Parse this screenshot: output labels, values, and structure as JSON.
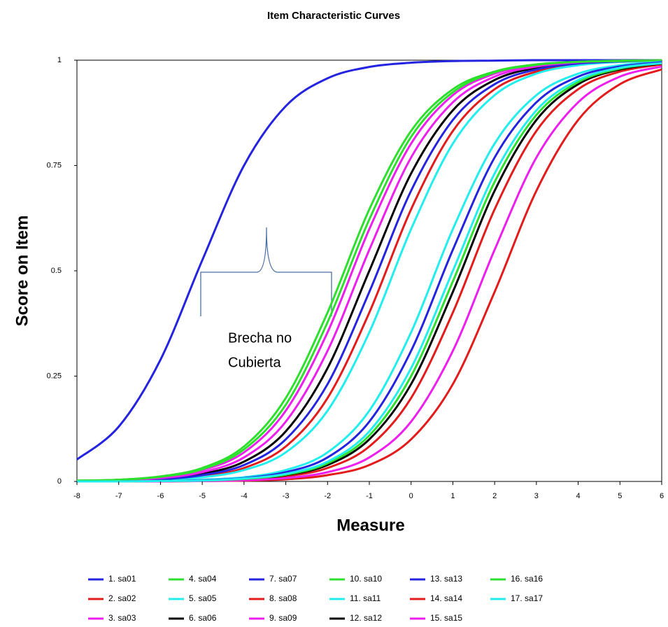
{
  "chart_data": {
    "type": "line",
    "title": "Item Characteristic Curves",
    "x_label": "Measure",
    "y_label": "Score on Item",
    "x": [
      -8,
      -7,
      -6,
      -5,
      -4,
      -3,
      -2,
      -1,
      0,
      1,
      2,
      3,
      4,
      5,
      6
    ],
    "xlim": [
      -8,
      6
    ],
    "xticks": [
      -8,
      -7,
      -6,
      -5,
      -4,
      -3,
      -2,
      -1,
      0,
      1,
      2,
      3,
      4,
      5,
      6
    ],
    "ylim": [
      0,
      1
    ],
    "yticks": [
      0,
      0.25,
      0.5,
      0.75,
      1
    ],
    "grid": false,
    "legend": "bottom",
    "annotation_lines": [
      "Brecha no",
      "Cubierta"
    ],
    "series": [
      {
        "name": "1. sa01",
        "color": "#2323e0",
        "values": [
          0.052,
          0.13,
          0.289,
          0.525,
          0.75,
          0.891,
          0.957,
          0.984,
          0.994,
          0.998,
          0.999,
          1,
          1,
          1,
          1
        ]
      },
      {
        "name": "2. sa02",
        "color": "#e31b1b",
        "values": [
          0.001,
          0.002,
          0.004,
          0.012,
          0.032,
          0.083,
          0.198,
          0.401,
          0.646,
          0.832,
          0.931,
          0.973,
          0.99,
          0.996,
          0.999
        ]
      },
      {
        "name": "3. sa03",
        "color": "#ee1eee",
        "values": [
          0.001,
          0.004,
          0.01,
          0.027,
          0.069,
          0.168,
          0.354,
          0.599,
          0.802,
          0.917,
          0.968,
          0.988,
          0.996,
          0.998,
          0.999
        ]
      },
      {
        "name": "4. sa04",
        "color": "#2ee02e",
        "values": [
          0.002,
          0.004,
          0.012,
          0.032,
          0.083,
          0.198,
          0.401,
          0.646,
          0.832,
          0.931,
          0.973,
          0.99,
          0.996,
          0.999,
          1
        ]
      },
      {
        "name": "5. sa05",
        "color": "#22eeee",
        "values": [
          0.001,
          0.001,
          0.004,
          0.01,
          0.027,
          0.069,
          0.168,
          0.354,
          0.599,
          0.802,
          0.917,
          0.968,
          0.988,
          0.996,
          0.998
        ]
      },
      {
        "name": "6. sa06",
        "color": "#000000",
        "values": [
          0.001,
          0.002,
          0.007,
          0.018,
          0.047,
          0.119,
          0.269,
          0.5,
          0.731,
          0.881,
          0.953,
          0.982,
          0.993,
          0.998,
          0.999
        ]
      },
      {
        "name": "7. sa07",
        "color": "#2323e0",
        "values": [
          0.001,
          0.002,
          0.005,
          0.015,
          0.039,
          0.1,
          0.231,
          0.45,
          0.69,
          0.858,
          0.943,
          0.978,
          0.992,
          0.997,
          0.999
        ]
      },
      {
        "name": "8. sa08",
        "color": "#e31b1b",
        "values": [
          0,
          0,
          0.001,
          0.002,
          0.004,
          0.012,
          0.032,
          0.083,
          0.198,
          0.401,
          0.646,
          0.832,
          0.931,
          0.973,
          0.99
        ]
      },
      {
        "name": "9. sa09",
        "color": "#ee1eee",
        "values": [
          0.001,
          0.003,
          0.008,
          0.022,
          0.057,
          0.142,
          0.31,
          0.55,
          0.769,
          0.9,
          0.961,
          0.985,
          0.995,
          0.998,
          0.999
        ]
      },
      {
        "name": "10. sa10",
        "color": "#2ee02e",
        "values": [
          0.002,
          0.004,
          0.011,
          0.029,
          0.076,
          0.182,
          0.378,
          0.622,
          0.818,
          0.924,
          0.971,
          0.989,
          0.996,
          0.998,
          0.999
        ]
      },
      {
        "name": "11. sa11",
        "color": "#22eeee",
        "values": [
          0,
          0,
          0.001,
          0.004,
          0.01,
          0.027,
          0.069,
          0.168,
          0.354,
          0.599,
          0.802,
          0.917,
          0.968,
          0.988,
          0.996
        ]
      },
      {
        "name": "12. sa12",
        "color": "#000000",
        "values": [
          0,
          0,
          0.001,
          0.002,
          0.005,
          0.015,
          0.039,
          0.1,
          0.231,
          0.45,
          0.69,
          0.858,
          0.943,
          0.978,
          0.992
        ]
      },
      {
        "name": "13. sa13",
        "color": "#2323e0",
        "values": [
          0,
          0,
          0.001,
          0.003,
          0.008,
          0.022,
          0.057,
          0.142,
          0.31,
          0.55,
          0.769,
          0.9,
          0.961,
          0.985,
          0.995
        ]
      },
      {
        "name": "14. sa14",
        "color": "#e31b1b",
        "values": [
          0,
          0,
          0,
          0.001,
          0.002,
          0.005,
          0.015,
          0.039,
          0.1,
          0.231,
          0.45,
          0.69,
          0.858,
          0.943,
          0.978
        ]
      },
      {
        "name": "15. sa15",
        "color": "#ee1eee",
        "values": [
          0,
          0,
          0,
          0.001,
          0.003,
          0.008,
          0.022,
          0.057,
          0.142,
          0.31,
          0.55,
          0.769,
          0.9,
          0.961,
          0.985
        ]
      },
      {
        "name": "16. sa16",
        "color": "#2ee02e",
        "values": [
          0,
          0,
          0.001,
          0.002,
          0.006,
          0.016,
          0.043,
          0.109,
          0.25,
          0.475,
          0.711,
          0.87,
          0.948,
          0.98,
          0.993
        ]
      },
      {
        "name": "17. sa17",
        "color": "#22eeee",
        "values": [
          0,
          0,
          0.001,
          0.002,
          0.007,
          0.018,
          0.047,
          0.119,
          0.269,
          0.5,
          0.731,
          0.881,
          0.953,
          0.982,
          0.993
        ]
      }
    ]
  }
}
